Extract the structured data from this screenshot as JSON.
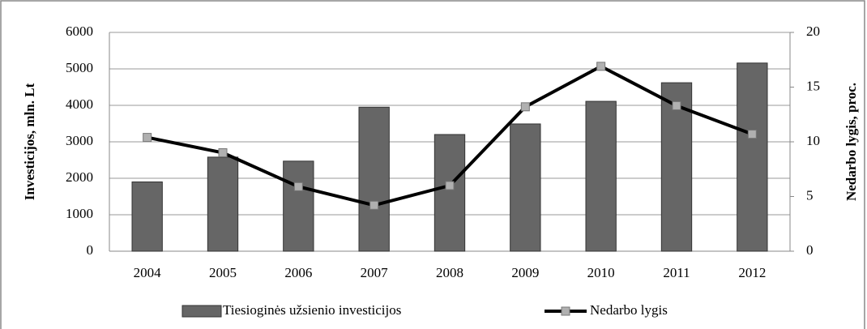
{
  "chart_data": {
    "type": "bar-line",
    "categories": [
      "2004",
      "2005",
      "2006",
      "2007",
      "2008",
      "2009",
      "2010",
      "2011",
      "2012"
    ],
    "series": [
      {
        "name": "Tiesioginės užsienio investicijos",
        "type": "bar",
        "color": "#666666",
        "values": [
          1900,
          2580,
          2470,
          3950,
          3200,
          3490,
          4110,
          4620,
          5160
        ]
      },
      {
        "name": "Nedarbo lygis",
        "type": "line",
        "axis": "y2",
        "color": "#000000",
        "marker_color": "#b0b0b0",
        "values": [
          10.4,
          9.0,
          5.9,
          4.2,
          6.0,
          13.2,
          16.9,
          13.3,
          10.7
        ]
      }
    ],
    "ylabel": "Investicijos, mln. Lt",
    "y2label": "Nedarbo lygis, proc.",
    "ylim": [
      0,
      6000
    ],
    "yticks": [
      0,
      1000,
      2000,
      3000,
      4000,
      5000,
      6000
    ],
    "y2lim": [
      0,
      20
    ],
    "y2ticks": [
      0,
      5,
      10,
      15,
      20
    ],
    "grid": true,
    "legend": "bottom"
  }
}
